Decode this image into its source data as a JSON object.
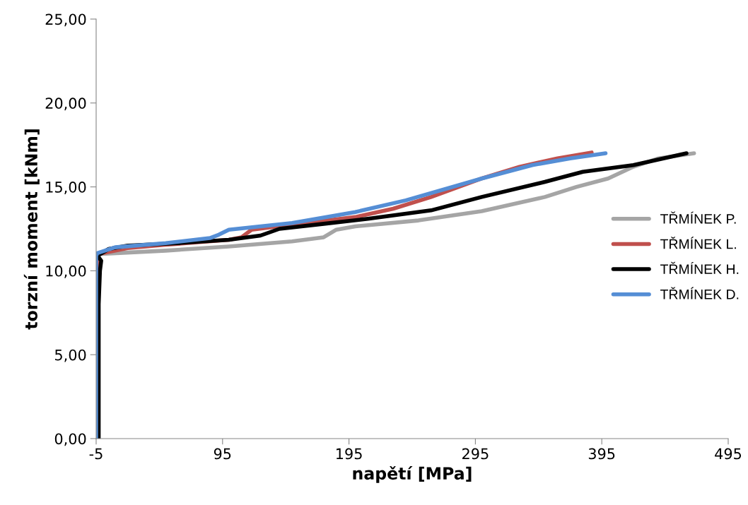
{
  "chart_data": {
    "type": "line",
    "xlabel": "napětí [MPa]",
    "ylabel": "torzní moment [kNm]",
    "xlim": [
      -5,
      495
    ],
    "xticks": [
      -5,
      95,
      195,
      295,
      395,
      495
    ],
    "ylim": [
      0,
      25
    ],
    "yticks": [
      {
        "value": 0,
        "label": "0,00"
      },
      {
        "value": 5,
        "label": "5,00"
      },
      {
        "value": 10,
        "label": "10,00"
      },
      {
        "value": 15,
        "label": "15,00"
      },
      {
        "value": 20,
        "label": "20,00"
      },
      {
        "value": 25,
        "label": "25,00"
      }
    ],
    "grid": false,
    "legend": "right",
    "marker": "none",
    "line_style": "solid",
    "series": [
      {
        "name": "TŘMÍNEK P.",
        "color": "#a5a5a5",
        "x": [
          -4,
          -4,
          -3,
          50,
          100,
          150,
          175,
          185,
          200,
          250,
          300,
          350,
          375,
          400,
          420,
          440,
          468
        ],
        "values": [
          0,
          10.8,
          11.0,
          11.2,
          11.45,
          11.75,
          12.0,
          12.45,
          12.65,
          13.0,
          13.55,
          14.4,
          15.0,
          15.5,
          16.2,
          16.7,
          17.0
        ]
      },
      {
        "name": "TŘMÍNEK L.",
        "color": "#c0504d",
        "x": [
          -4,
          -4,
          -3,
          20,
          50,
          100,
          110,
          118,
          150,
          200,
          230,
          260,
          300,
          330,
          360,
          387
        ],
        "values": [
          0,
          10.8,
          11.0,
          11.35,
          11.55,
          11.85,
          12.0,
          12.45,
          12.75,
          13.2,
          13.7,
          14.4,
          15.5,
          16.2,
          16.7,
          17.05
        ]
      },
      {
        "name": "TŘMÍNEK H.",
        "color": "#000000",
        "x": [
          -3,
          -3,
          -2,
          -1,
          -4,
          5,
          20,
          60,
          100,
          125,
          140,
          175,
          210,
          260,
          300,
          350,
          380,
          420,
          462
        ],
        "values": [
          0,
          8,
          10.0,
          10.6,
          10.9,
          11.3,
          11.5,
          11.65,
          11.85,
          12.1,
          12.5,
          12.8,
          13.1,
          13.6,
          14.4,
          15.3,
          15.9,
          16.3,
          17.0
        ]
      },
      {
        "name": "TŘMÍNEK D.",
        "color": "#558ed5",
        "x": [
          -5,
          -5,
          -4,
          10,
          50,
          85,
          92,
          100,
          150,
          200,
          240,
          300,
          340,
          370,
          398
        ],
        "values": [
          0,
          10.9,
          11.05,
          11.4,
          11.65,
          11.95,
          12.15,
          12.45,
          12.85,
          13.5,
          14.2,
          15.5,
          16.3,
          16.7,
          17.0
        ]
      }
    ]
  }
}
